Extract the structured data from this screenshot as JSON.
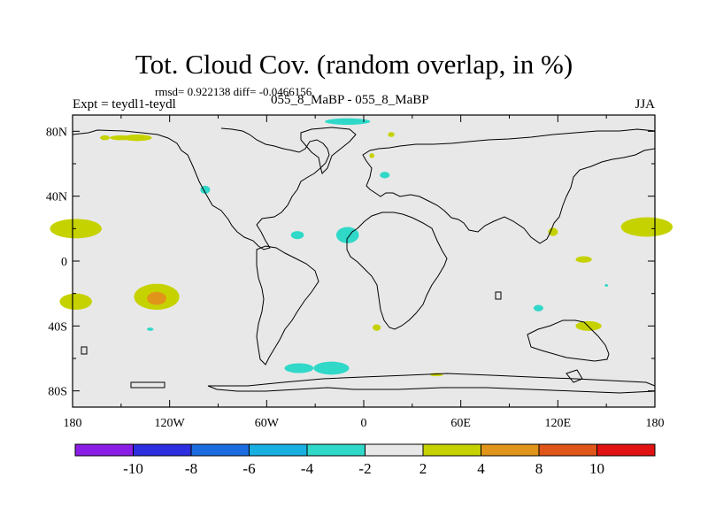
{
  "title": "Tot. Cloud Cov. (random overlap, in %)",
  "stats": "rmsd= 0.922138 diff= -0.0466156",
  "experiment": "Expt = teydl1-teydl",
  "runs": "055_8_MaBP - 055_8_MaBP",
  "season": "JJA",
  "map": {
    "background_color": "#e8e8e8",
    "lon_ticks": [
      {
        "value": -180,
        "label": "180"
      },
      {
        "value": -120,
        "label": "120W"
      },
      {
        "value": -60,
        "label": "60W"
      },
      {
        "value": 0,
        "label": "0"
      },
      {
        "value": 60,
        "label": "60E"
      },
      {
        "value": 120,
        "label": "120E"
      },
      {
        "value": 180,
        "label": "180"
      }
    ],
    "lat_ticks": [
      {
        "value": 80,
        "label": "80N"
      },
      {
        "value": 40,
        "label": "40N"
      },
      {
        "value": 0,
        "label": "0"
      },
      {
        "value": -40,
        "label": "40S"
      },
      {
        "value": -80,
        "label": "80S"
      }
    ],
    "lon_range": [
      -180,
      180
    ],
    "lat_range": [
      -90,
      90
    ],
    "anomaly_patches": [
      {
        "lon": -150,
        "lat": 76,
        "rx": 7,
        "ry": 1.5,
        "color": "#c6d200"
      },
      {
        "lon": -140,
        "lat": 76,
        "rx": 9,
        "ry": 2,
        "color": "#c6d200"
      },
      {
        "lon": -160,
        "lat": 76,
        "rx": 3,
        "ry": 1.5,
        "color": "#c6d200"
      },
      {
        "lon": -10,
        "lat": 86,
        "rx": 14,
        "ry": 2,
        "color": "#30d8c8"
      },
      {
        "lon": 17,
        "lat": 78,
        "rx": 2,
        "ry": 1.5,
        "color": "#c6d200"
      },
      {
        "lon": 5,
        "lat": 65,
        "rx": 1.5,
        "ry": 1.5,
        "color": "#c6d200"
      },
      {
        "lon": 13,
        "lat": 53,
        "rx": 3,
        "ry": 2,
        "color": "#30d8c8"
      },
      {
        "lon": -98,
        "lat": 44,
        "rx": 3,
        "ry": 2.5,
        "color": "#30d8c8"
      },
      {
        "lon": -178,
        "lat": 20,
        "rx": 16,
        "ry": 6,
        "color": "#c6d200"
      },
      {
        "lon": 175,
        "lat": 21,
        "rx": 16,
        "ry": 6,
        "color": "#c6d200"
      },
      {
        "lon": -41,
        "lat": 16,
        "rx": 4,
        "ry": 2.5,
        "color": "#30d8c8"
      },
      {
        "lon": -10,
        "lat": 16,
        "rx": 7,
        "ry": 5,
        "color": "#30d8c8"
      },
      {
        "lon": 117,
        "lat": 18,
        "rx": 3,
        "ry": 2.5,
        "color": "#c6d200"
      },
      {
        "lon": 136,
        "lat": 1,
        "rx": 5,
        "ry": 2,
        "color": "#c6d200"
      },
      {
        "lon": -178,
        "lat": -25,
        "rx": 10,
        "ry": 5,
        "color": "#c6d200"
      },
      {
        "lon": -128,
        "lat": -22,
        "rx": 14,
        "ry": 8,
        "color": "#c6d200"
      },
      {
        "lon": -128,
        "lat": -23,
        "rx": 6,
        "ry": 4,
        "color": "#e0951a"
      },
      {
        "lon": -132,
        "lat": -42,
        "rx": 2,
        "ry": 1,
        "color": "#30d8c8"
      },
      {
        "lon": 108,
        "lat": -29,
        "rx": 3,
        "ry": 2,
        "color": "#30d8c8"
      },
      {
        "lon": 8,
        "lat": -41,
        "rx": 2.5,
        "ry": 2,
        "color": "#c6d200"
      },
      {
        "lon": 139,
        "lat": -40,
        "rx": 8,
        "ry": 3,
        "color": "#c6d200"
      },
      {
        "lon": -40,
        "lat": -66,
        "rx": 9,
        "ry": 3,
        "color": "#30d8c8"
      },
      {
        "lon": -20,
        "lat": -66,
        "rx": 11,
        "ry": 4,
        "color": "#30d8c8"
      },
      {
        "lon": 45,
        "lat": -70,
        "rx": 4,
        "ry": 1,
        "color": "#c6d200"
      },
      {
        "lon": 150,
        "lat": -15,
        "rx": 1,
        "ry": 0.8,
        "color": "#30d8c8"
      }
    ]
  },
  "colorbar": {
    "boxes": [
      "#8a1ee6",
      "#2d2ee0",
      "#1a6ce0",
      "#18b0e0",
      "#30d8c8",
      "#e8e8e8",
      "#c6d200",
      "#e0951a",
      "#e0561a",
      "#e01212"
    ],
    "labels": [
      "-10",
      "-8",
      "-6",
      "-4",
      "-2",
      "2",
      "4",
      "8",
      "10"
    ]
  }
}
